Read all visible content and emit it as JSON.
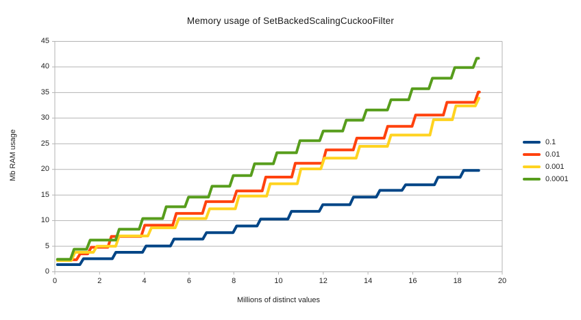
{
  "title": "Memory usage of SetBackedScalingCuckooFilter",
  "chart_data": {
    "type": "line",
    "subtype": "step",
    "title": "Memory usage of SetBackedScalingCuckooFilter",
    "xlabel": "Millions of distinct values",
    "ylabel": "Mb RAM usage",
    "xlim": [
      0,
      20
    ],
    "ylim": [
      0,
      45
    ],
    "xticks": [
      0,
      2,
      4,
      6,
      8,
      10,
      12,
      14,
      16,
      18,
      20
    ],
    "yticks": [
      0,
      5,
      10,
      15,
      20,
      25,
      30,
      35,
      40,
      45
    ],
    "grid": "horizontal-only",
    "legend_position": "right",
    "colors": {
      "grid": "#b3b3b3",
      "axis": "#b3b3b3",
      "text": "#222222",
      "background": "#ffffff"
    },
    "series": [
      {
        "name": "0.1",
        "color": "#004586",
        "x_end": 18.95,
        "steps": [
          [
            0.12,
            1.4
          ],
          [
            1.2,
            2.55
          ],
          [
            2.65,
            3.8
          ],
          [
            4.0,
            5.05
          ],
          [
            5.25,
            6.4
          ],
          [
            6.7,
            7.65
          ],
          [
            8.05,
            8.95
          ],
          [
            9.12,
            10.3
          ],
          [
            10.5,
            11.8
          ],
          [
            11.9,
            13.1
          ],
          [
            13.27,
            14.6
          ],
          [
            14.45,
            15.9
          ],
          [
            15.6,
            17.0
          ],
          [
            17.05,
            18.45
          ],
          [
            18.2,
            19.8
          ]
        ]
      },
      {
        "name": "0.01",
        "color": "#ff420e",
        "x_end": 18.98,
        "steps": [
          [
            0.12,
            2.35
          ],
          [
            1.05,
            3.5
          ],
          [
            1.55,
            4.8
          ],
          [
            2.45,
            6.9
          ],
          [
            3.94,
            9.1
          ],
          [
            5.35,
            11.4
          ],
          [
            6.68,
            13.7
          ],
          [
            8.05,
            15.8
          ],
          [
            9.35,
            18.5
          ],
          [
            10.67,
            21.2
          ],
          [
            12.05,
            23.8
          ],
          [
            13.42,
            26.1
          ],
          [
            14.8,
            28.4
          ],
          [
            16.05,
            30.6
          ],
          [
            17.45,
            33.1
          ],
          [
            18.85,
            35.1
          ]
        ]
      },
      {
        "name": "0.001",
        "color": "#ffd320",
        "x_end": 18.96,
        "steps": [
          [
            0.12,
            2.2
          ],
          [
            0.82,
            3.8
          ],
          [
            1.8,
            5.0
          ],
          [
            2.8,
            7.0
          ],
          [
            4.24,
            8.6
          ],
          [
            5.46,
            10.4
          ],
          [
            6.84,
            12.3
          ],
          [
            8.15,
            14.8
          ],
          [
            9.55,
            17.2
          ],
          [
            10.92,
            20.1
          ],
          [
            11.97,
            22.2
          ],
          [
            13.55,
            24.5
          ],
          [
            14.95,
            26.7
          ],
          [
            16.85,
            29.7
          ],
          [
            17.85,
            32.4
          ],
          [
            18.88,
            33.9
          ]
        ]
      },
      {
        "name": "0.0001",
        "color": "#579d1c",
        "x_end": 18.94,
        "steps": [
          [
            0.12,
            2.45
          ],
          [
            0.78,
            4.4
          ],
          [
            1.5,
            6.2
          ],
          [
            2.8,
            8.3
          ],
          [
            3.85,
            10.4
          ],
          [
            4.9,
            12.7
          ],
          [
            5.9,
            14.6
          ],
          [
            6.95,
            16.7
          ],
          [
            7.9,
            18.8
          ],
          [
            8.85,
            21.1
          ],
          [
            9.85,
            23.25
          ],
          [
            10.88,
            25.6
          ],
          [
            11.92,
            27.5
          ],
          [
            12.95,
            29.6
          ],
          [
            13.85,
            31.6
          ],
          [
            14.95,
            33.6
          ],
          [
            15.9,
            35.75
          ],
          [
            16.8,
            37.8
          ],
          [
            17.8,
            39.9
          ],
          [
            18.78,
            41.7
          ]
        ]
      }
    ]
  }
}
